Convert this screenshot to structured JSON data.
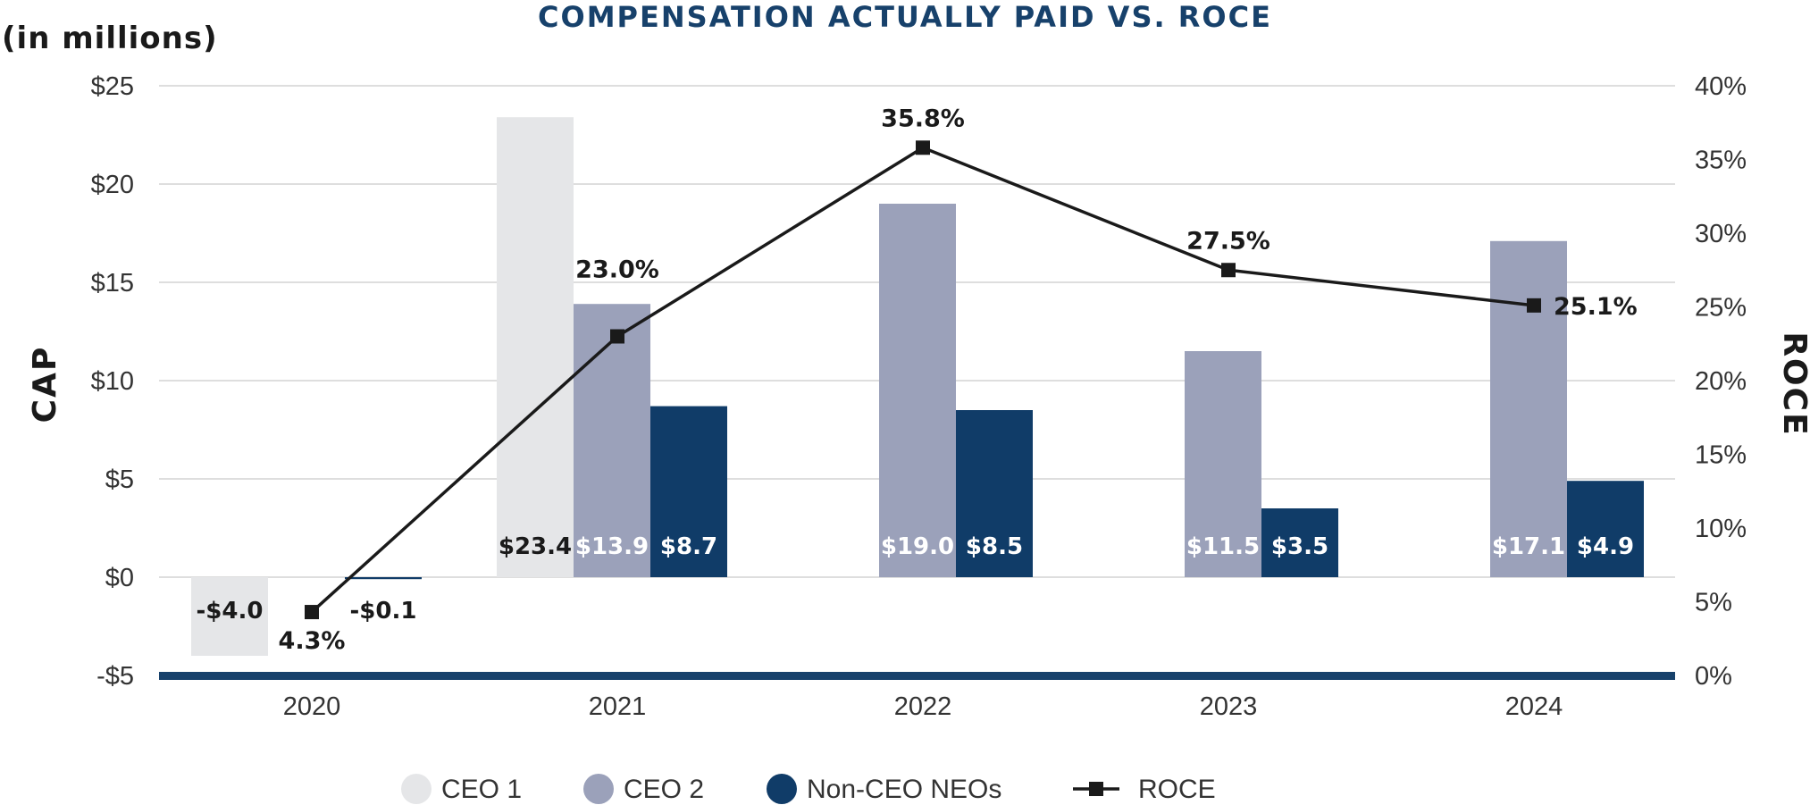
{
  "colors": {
    "ceo1": "#e5e6e8",
    "ceo2": "#9ba1ba",
    "non_ceo": "#103c68",
    "roce": "#1a1a1a",
    "baseline": "#17416b",
    "title": "#17416b"
  },
  "chart_data": {
    "type": "bar",
    "title": "COMPENSATION ACTUALLY PAID VS. ROCE",
    "units_label": "(in millions)",
    "ylabel": "CAP",
    "y2label": "ROCE",
    "categories": [
      "2020",
      "2021",
      "2022",
      "2023",
      "2024"
    ],
    "ylim": [
      -5,
      25
    ],
    "yticks": [
      {
        "value": 25,
        "label": "$25"
      },
      {
        "value": 20,
        "label": "$20"
      },
      {
        "value": 15,
        "label": "$15"
      },
      {
        "value": 10,
        "label": "$10"
      },
      {
        "value": 5,
        "label": "$5"
      },
      {
        "value": 0,
        "label": "$0"
      },
      {
        "value": -5,
        "label": "-$5"
      }
    ],
    "y2lim": [
      0,
      40
    ],
    "y2ticks": [
      {
        "value": 40,
        "label": "40%"
      },
      {
        "value": 35,
        "label": "35%"
      },
      {
        "value": 30,
        "label": "30%"
      },
      {
        "value": 25,
        "label": "25%"
      },
      {
        "value": 20,
        "label": "20%"
      },
      {
        "value": 15,
        "label": "15%"
      },
      {
        "value": 10,
        "label": "10%"
      },
      {
        "value": 5,
        "label": "5%"
      },
      {
        "value": 0,
        "label": "0%"
      }
    ],
    "bar_series": [
      {
        "key": "ceo1",
        "name": "CEO 1",
        "values": [
          -4.0,
          23.4,
          null,
          null,
          null
        ],
        "labels": [
          "-$4.0",
          "$23.4",
          null,
          null,
          null
        ]
      },
      {
        "key": "ceo2",
        "name": "CEO 2",
        "values": [
          null,
          13.9,
          19.0,
          11.5,
          17.1
        ],
        "labels": [
          null,
          "$13.9",
          "$19.0",
          "$11.5",
          "$17.1"
        ]
      },
      {
        "key": "non_ceo",
        "name": "Non-CEO NEOs",
        "values": [
          -0.1,
          8.7,
          8.5,
          3.5,
          4.9
        ],
        "labels": [
          "-$0.1",
          "$8.7",
          "$8.5",
          "$3.5",
          "$4.9"
        ]
      }
    ],
    "line_series": {
      "key": "roce",
      "name": "ROCE",
      "axis": "right",
      "values": [
        4.3,
        23.0,
        35.8,
        27.5,
        25.1
      ],
      "labels": [
        "4.3%",
        "23.0%",
        "35.8%",
        "27.5%",
        "25.1%"
      ]
    },
    "legend": {
      "position": "bottom-center",
      "items": [
        {
          "key": "ceo1",
          "label": "CEO 1",
          "marker": "circle"
        },
        {
          "key": "ceo2",
          "label": "CEO 2",
          "marker": "circle"
        },
        {
          "key": "non_ceo",
          "label": "Non-CEO NEOs",
          "marker": "circle"
        },
        {
          "key": "roce",
          "label": "ROCE",
          "marker": "line-square"
        }
      ]
    }
  }
}
